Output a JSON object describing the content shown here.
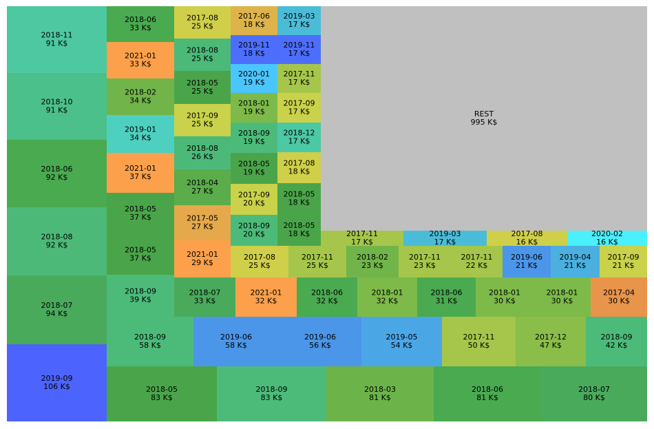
{
  "chart_data": {
    "type": "treemap",
    "value_unit": "K$",
    "rest": {
      "label": "REST",
      "value": 995,
      "color": "#c0c0c0"
    },
    "cells": [
      {
        "label": "2019-09",
        "value": 106,
        "color": "#4d63fd"
      },
      {
        "label": "2018-07",
        "value": 94,
        "color": "#4aaa5c"
      },
      {
        "label": "2018-08",
        "value": 92,
        "color": "#4cb978"
      },
      {
        "label": "2018-06",
        "value": 92,
        "color": "#4aaa50"
      },
      {
        "label": "2018-10",
        "value": 91,
        "color": "#4cc08a"
      },
      {
        "label": "2018-11",
        "value": 91,
        "color": "#4dc8a0"
      },
      {
        "label": "2018-05",
        "value": 83,
        "color": "#4aa54a"
      },
      {
        "label": "2018-09",
        "value": 83,
        "color": "#4cbb7a"
      },
      {
        "label": "2018-03",
        "value": 81,
        "color": "#6cb44a"
      },
      {
        "label": "2018-06",
        "value": 81,
        "color": "#4aaa50"
      },
      {
        "label": "2018-07",
        "value": 80,
        "color": "#4aaa5c"
      },
      {
        "label": "2018-09",
        "value": 58,
        "color": "#4cbb7a"
      },
      {
        "label": "2019-06",
        "value": 58,
        "color": "#4b96e8"
      },
      {
        "label": "2019-06",
        "value": 56,
        "color": "#4b96e8"
      },
      {
        "label": "2019-05",
        "value": 54,
        "color": "#4ba6e6"
      },
      {
        "label": "2017-11",
        "value": 50,
        "color": "#a5c64a"
      },
      {
        "label": "2017-12",
        "value": 47,
        "color": "#8abd4a"
      },
      {
        "label": "2018-09",
        "value": 42,
        "color": "#4cbb7a"
      },
      {
        "label": "2018-09",
        "value": 39,
        "color": "#4cbb7a"
      },
      {
        "label": "2018-07",
        "value": 33,
        "color": "#4aaa5c"
      },
      {
        "label": "2021-01",
        "value": 32,
        "color": "#fda04b"
      },
      {
        "label": "2018-06",
        "value": 32,
        "color": "#4aaa50"
      },
      {
        "label": "2018-01",
        "value": 32,
        "color": "#7dba4a"
      },
      {
        "label": "2018-06",
        "value": 31,
        "color": "#4aaa50"
      },
      {
        "label": "2018-01",
        "value": 30,
        "color": "#7dba4a"
      },
      {
        "label": "2018-01",
        "value": 30,
        "color": "#7dba4a"
      },
      {
        "label": "2017-04",
        "value": 30,
        "color": "#e8944b"
      },
      {
        "label": "2017-08",
        "value": 25,
        "color": "#cfcf4a"
      },
      {
        "label": "2017-11",
        "value": 25,
        "color": "#a5c64a"
      },
      {
        "label": "2018-02",
        "value": 23,
        "color": "#71b44a"
      },
      {
        "label": "2017-11",
        "value": 23,
        "color": "#a5c64a"
      },
      {
        "label": "2017-11",
        "value": 22,
        "color": "#a5c64a"
      },
      {
        "label": "2019-06",
        "value": 21,
        "color": "#4b96e8"
      },
      {
        "label": "2019-04",
        "value": 21,
        "color": "#4bb0e0"
      },
      {
        "label": "2017-09",
        "value": 21,
        "color": "#c9d24a"
      },
      {
        "label": "2017-11",
        "value": 17,
        "color": "#a5c64a"
      },
      {
        "label": "2019-03",
        "value": 17,
        "color": "#4bbcd8"
      },
      {
        "label": "2017-08",
        "value": 16,
        "color": "#cfcf4a"
      },
      {
        "label": "2020-02",
        "value": 16,
        "color": "#4af0fd"
      },
      {
        "label": "2018-06",
        "value": 33,
        "color": "#4aaa50"
      },
      {
        "label": "2021-01",
        "value": 33,
        "color": "#fda04b"
      },
      {
        "label": "2018-02",
        "value": 34,
        "color": "#71b44a"
      },
      {
        "label": "2019-01",
        "value": 34,
        "color": "#4dd0c0"
      },
      {
        "label": "2021-01",
        "value": 37,
        "color": "#fda04b"
      },
      {
        "label": "2018-05",
        "value": 37,
        "color": "#4aa54a"
      },
      {
        "label": "2018-05",
        "value": 37,
        "color": "#4aa54a"
      },
      {
        "label": "2017-08",
        "value": 25,
        "color": "#cfcf4a"
      },
      {
        "label": "2018-08",
        "value": 25,
        "color": "#4cb978"
      },
      {
        "label": "2018-05",
        "value": 25,
        "color": "#4aa54a"
      },
      {
        "label": "2017-09",
        "value": 25,
        "color": "#c9d24a"
      },
      {
        "label": "2018-08",
        "value": 26,
        "color": "#4cb978"
      },
      {
        "label": "2018-04",
        "value": 27,
        "color": "#5aad4a"
      },
      {
        "label": "2017-05",
        "value": 27,
        "color": "#e5a94b"
      },
      {
        "label": "2021-01",
        "value": 29,
        "color": "#fda04b"
      },
      {
        "label": "2017-06",
        "value": 18,
        "color": "#deb44a"
      },
      {
        "label": "2019-11",
        "value": 18,
        "color": "#4d6efd"
      },
      {
        "label": "2020-01",
        "value": 19,
        "color": "#4bc6fd"
      },
      {
        "label": "2018-01",
        "value": 19,
        "color": "#7dba4a"
      },
      {
        "label": "2018-09",
        "value": 19,
        "color": "#4cbb7a"
      },
      {
        "label": "2018-05",
        "value": 19,
        "color": "#4aa54a"
      },
      {
        "label": "2017-09",
        "value": 20,
        "color": "#c9d24a"
      },
      {
        "label": "2018-09",
        "value": 20,
        "color": "#4cbb7a"
      },
      {
        "label": "2019-03",
        "value": 17,
        "color": "#4bbcd8"
      },
      {
        "label": "2019-11",
        "value": 17,
        "color": "#4d6efd"
      },
      {
        "label": "2017-11",
        "value": 17,
        "color": "#a5c64a"
      },
      {
        "label": "2017-09",
        "value": 17,
        "color": "#c9d24a"
      },
      {
        "label": "2018-12",
        "value": 17,
        "color": "#4cc8a4"
      },
      {
        "label": "2017-08",
        "value": 18,
        "color": "#cfcf4a"
      },
      {
        "label": "2018-05",
        "value": 18,
        "color": "#4aa54a"
      },
      {
        "label": "2018-05",
        "value": 18,
        "color": "#4aa54a"
      }
    ]
  }
}
